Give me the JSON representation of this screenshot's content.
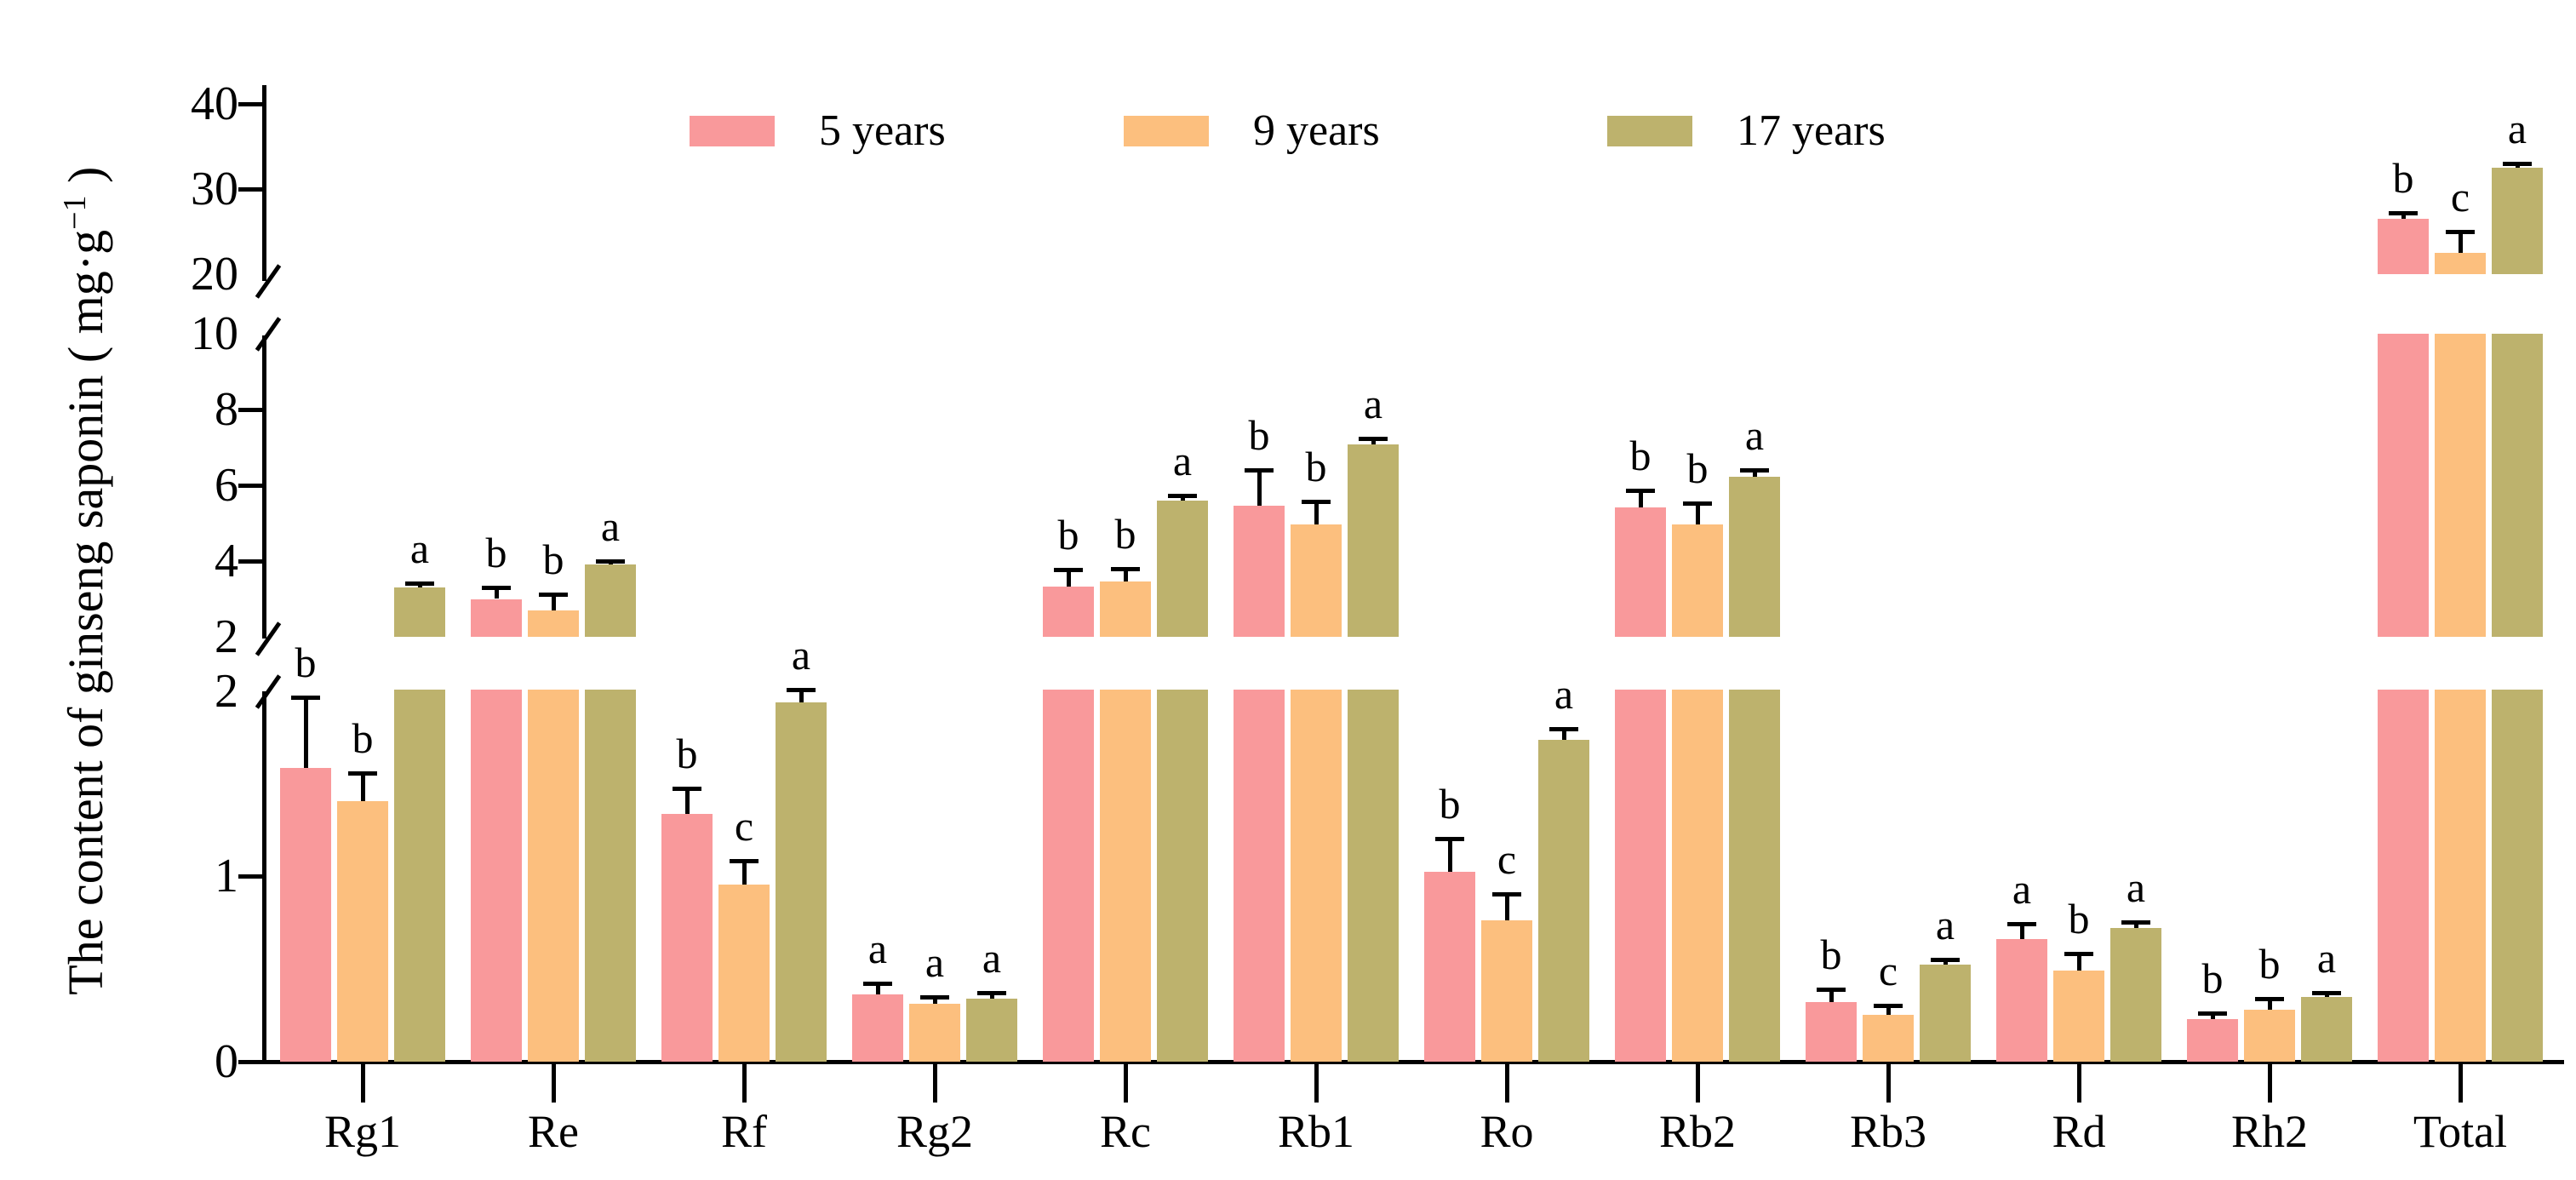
{
  "figure": {
    "background": "#ffffff",
    "axis_color": "#000000"
  },
  "ylabel": {
    "main": "The content of ginseng saponin ( mg·g",
    "sup": "−1",
    "close": " )"
  },
  "chart_data": {
    "type": "bar",
    "title": "",
    "xlabel": "",
    "ylabel": "The content of ginseng saponin (mg·g⁻¹)",
    "grid": false,
    "legend_position": "top",
    "axis_breaks": [
      [
        2,
        2
      ],
      [
        10,
        20
      ]
    ],
    "ylim_segments": [
      [
        0,
        2
      ],
      [
        2,
        10
      ],
      [
        20,
        40
      ]
    ],
    "y_ticks": {
      "lower": [
        {
          "value": 0,
          "label": "0",
          "mark": true
        },
        {
          "value": 1,
          "label": "1",
          "mark": true
        },
        {
          "value": 2,
          "label": "2",
          "mark": false
        }
      ],
      "middle": [
        {
          "value": 2,
          "label": "2",
          "mark": false
        },
        {
          "value": 4,
          "label": "4",
          "mark": true
        },
        {
          "value": 6,
          "label": "6",
          "mark": true
        },
        {
          "value": 8,
          "label": "8",
          "mark": true
        },
        {
          "value": 10,
          "label": "10",
          "mark": false
        }
      ],
      "top": [
        {
          "value": 20,
          "label": "20",
          "mark": false
        },
        {
          "value": 30,
          "label": "30",
          "mark": true
        },
        {
          "value": 40,
          "label": "40",
          "mark": true
        }
      ]
    },
    "categories": [
      "Rg1",
      "Re",
      "Rf",
      "Rg2",
      "Rc",
      "Rb1",
      "Ro",
      "Rb2",
      "Rb3",
      "Rd",
      "Rh2",
      "Total"
    ],
    "series": [
      {
        "name": "5 years",
        "color": "#F9999B",
        "values": [
          1.58,
          3.0,
          1.33,
          0.36,
          3.32,
          5.45,
          1.02,
          5.42,
          0.32,
          0.66,
          0.23,
          26.5
        ],
        "errors": [
          0.38,
          0.3,
          0.14,
          0.06,
          0.45,
          0.95,
          0.18,
          0.45,
          0.07,
          0.08,
          0.03,
          0.7
        ],
        "letters": [
          "b",
          "b",
          "b",
          "a",
          "b",
          "b",
          "b",
          "b",
          "b",
          "a",
          "b",
          "b"
        ]
      },
      {
        "name": "9 years",
        "color": "#FCBF7E",
        "values": [
          1.4,
          2.7,
          0.95,
          0.31,
          3.45,
          4.97,
          0.76,
          4.97,
          0.25,
          0.49,
          0.28,
          22.5
        ],
        "errors": [
          0.15,
          0.42,
          0.13,
          0.04,
          0.35,
          0.6,
          0.14,
          0.55,
          0.05,
          0.09,
          0.06,
          2.5
        ],
        "letters": [
          "b",
          "b",
          "c",
          "a",
          "b",
          "b",
          "c",
          "b",
          "c",
          "b",
          "b",
          "c"
        ]
      },
      {
        "name": "17 years",
        "color": "#BDB26D",
        "values": [
          3.3,
          3.9,
          1.93,
          0.34,
          5.6,
          7.08,
          1.73,
          6.22,
          0.52,
          0.72,
          0.35,
          32.5
        ],
        "errors": [
          0.12,
          0.11,
          0.07,
          0.03,
          0.13,
          0.15,
          0.06,
          0.18,
          0.03,
          0.03,
          0.02,
          0.5
        ],
        "letters": [
          "a",
          "a",
          "a",
          "a",
          "a",
          "a",
          "a",
          "a",
          "a",
          "a",
          "a",
          "a"
        ]
      }
    ]
  }
}
